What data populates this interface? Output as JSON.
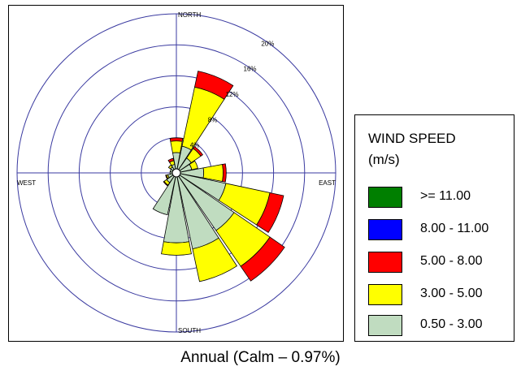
{
  "chart_data": {
    "type": "wind-rose",
    "caption": "Annual (Calm – 0.97%)",
    "compass": {
      "north": "NORTH",
      "south": "SOUTH",
      "east": "EAST",
      "west": "WEST"
    },
    "rings": [
      {
        "value": 4,
        "label": "4%"
      },
      {
        "value": 8,
        "label": "8%"
      },
      {
        "value": 12,
        "label": "12%"
      },
      {
        "value": 16,
        "label": "16%"
      },
      {
        "value": 20,
        "label": "20%"
      }
    ],
    "max_ring": 20,
    "legend": {
      "title_line1": "WIND SPEED",
      "title_line2": "(m/s)",
      "bins": [
        {
          "label": ">= 11.00",
          "color": "#007f00"
        },
        {
          "label": "8.00 - 11.00",
          "color": "#0000ff"
        },
        {
          "label": "5.00 - 8.00",
          "color": "#ff0000"
        },
        {
          "label": "3.00 - 5.00",
          "color": "#ffff00"
        },
        {
          "label": "0.50 - 3.00",
          "color": "#c0dcc0"
        }
      ]
    },
    "directions_deg": [
      0,
      22.5,
      45,
      67.5,
      90,
      112.5,
      135,
      157.5,
      180,
      202.5,
      225,
      247.5,
      270,
      292.5,
      315,
      337.5
    ],
    "series": [
      {
        "name": "0.50 - 3.00",
        "color": "#c0dcc0",
        "values": [
          2.1,
          3.0,
          1.8,
          1.5,
          3.0,
          6.0,
          8.5,
          9.5,
          8.5,
          5.0,
          1.0,
          0.6,
          0.3,
          0.3,
          0.4,
          0.6
        ]
      },
      {
        "name": "3.00 - 5.00",
        "color": "#ffff00",
        "values": [
          1.5,
          7.8,
          1.5,
          0.8,
          2.5,
          5.8,
          5.6,
          4.3,
          1.6,
          0.0,
          0.4,
          0.2,
          0.0,
          0.0,
          0.3,
          0.5
        ]
      },
      {
        "name": "5.00 - 8.00",
        "color": "#ff0000",
        "values": [
          0.4,
          2.1,
          0.3,
          0.0,
          0.4,
          1.8,
          2.3,
          0.0,
          0.0,
          0.0,
          0.1,
          0.1,
          0.0,
          0.0,
          0.0,
          0.3
        ]
      },
      {
        "name": "8.00 - 11.00",
        "color": "#0000ff",
        "values": [
          0,
          0,
          0,
          0,
          0,
          0,
          0,
          0,
          0,
          0,
          0,
          0,
          0,
          0,
          0,
          0
        ]
      },
      {
        "name": ">= 11.00",
        "color": "#007f00",
        "values": [
          0,
          0,
          0,
          0,
          0,
          0,
          0,
          0,
          0,
          0,
          0,
          0,
          0,
          0,
          0,
          0
        ]
      }
    ]
  }
}
